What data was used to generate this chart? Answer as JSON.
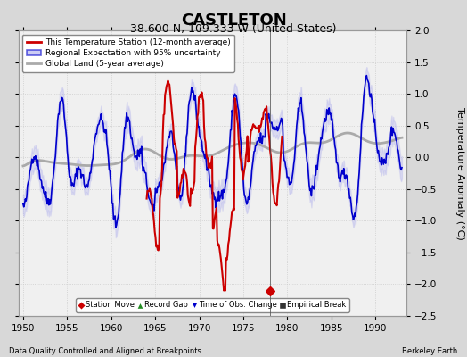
{
  "title": "CASTLETON",
  "subtitle": "38.600 N, 109.333 W (United States)",
  "ylabel": "Temperature Anomaly (°C)",
  "xlabel_left": "Data Quality Controlled and Aligned at Breakpoints",
  "xlabel_right": "Berkeley Earth",
  "xlim": [
    1949.5,
    1993.5
  ],
  "ylim": [
    -2.5,
    2.0
  ],
  "yticks": [
    -2.5,
    -2.0,
    -1.5,
    -1.0,
    -0.5,
    0.0,
    0.5,
    1.0,
    1.5,
    2.0
  ],
  "xticks": [
    1950,
    1955,
    1960,
    1965,
    1970,
    1975,
    1980,
    1985,
    1990
  ],
  "bg_color": "#d8d8d8",
  "plot_bg_color": "#f0f0f0",
  "title_fontsize": 13,
  "subtitle_fontsize": 9,
  "station_move_x": 1978.0,
  "station_move_y": -2.1,
  "vertical_line_x": 1978.0,
  "fill_alpha": 0.3,
  "fill_color": "#aaaaee",
  "blue_color": "#0000cc",
  "red_color": "#cc0000",
  "gray_color": "#aaaaaa",
  "red_start_year": 1964.0,
  "red_end_year": 1979.5
}
